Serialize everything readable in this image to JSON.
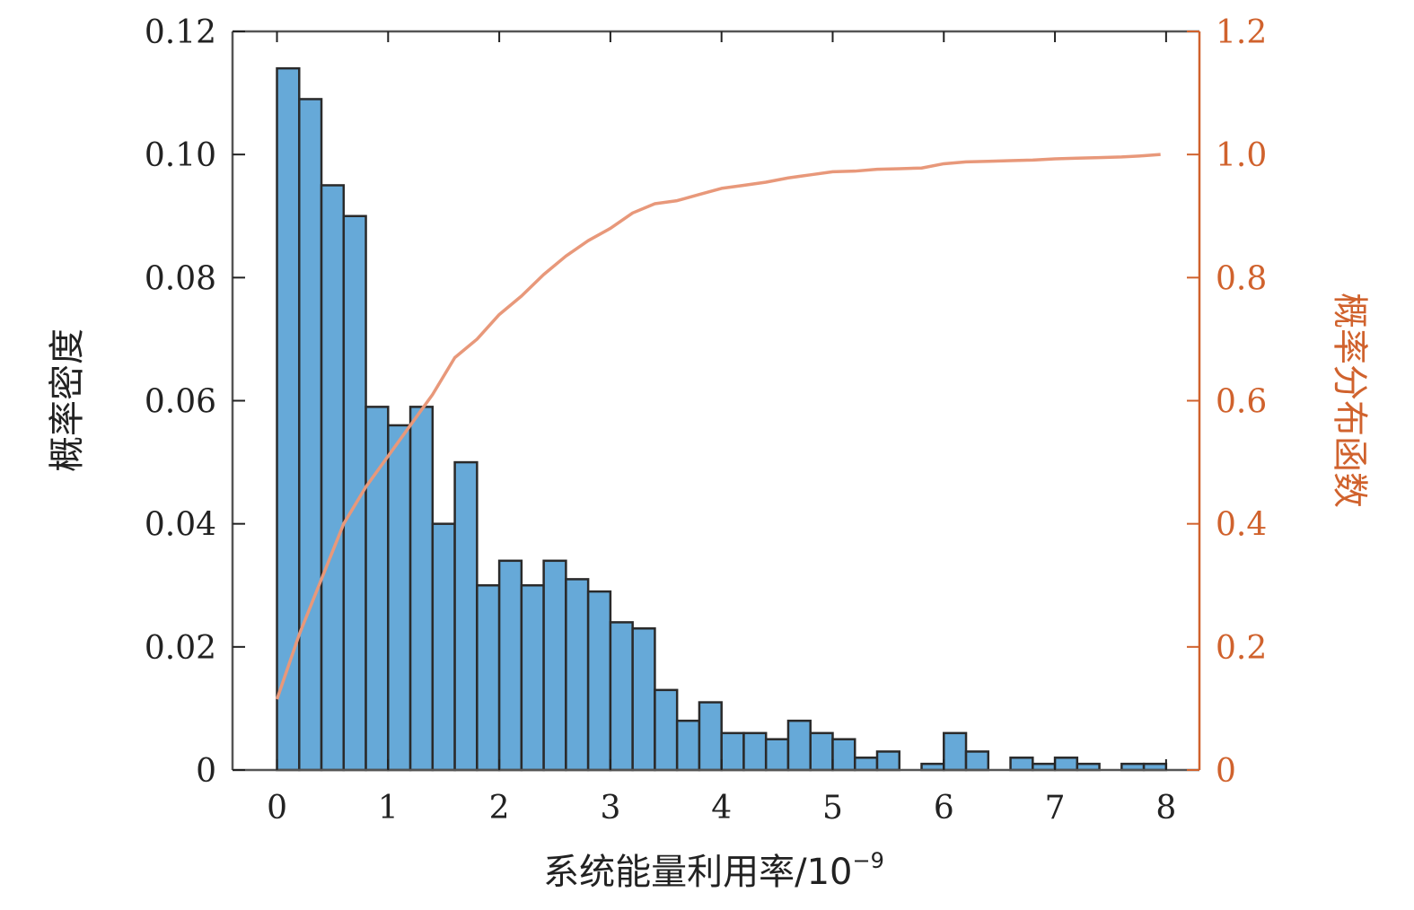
{
  "chart_data": {
    "type": "bar",
    "title": "",
    "xlabel": "系统能量利用率/10",
    "xlabel_exponent": "−9",
    "ylabel_left": "概率密度",
    "ylabel_right": "概率分布函数",
    "xlim": [
      -0.4,
      8.3
    ],
    "ylim_left": [
      0,
      0.12
    ],
    "ylim_right": [
      0,
      1.2
    ],
    "x_ticks": [
      "0",
      "1",
      "2",
      "3",
      "4",
      "5",
      "6",
      "7",
      "8"
    ],
    "y_left_ticks": [
      "0",
      "0.02",
      "0.04",
      "0.06",
      "0.08",
      "0.10",
      "0.12"
    ],
    "y_right_ticks": [
      "0",
      "0.2",
      "0.4",
      "0.6",
      "0.8",
      "1.0",
      "1.2"
    ],
    "bin_width": 0.2,
    "histogram": {
      "bin_starts": [
        0,
        0.2,
        0.4,
        0.6,
        0.8,
        1.0,
        1.2,
        1.4,
        1.6,
        1.8,
        2.0,
        2.2,
        2.4,
        2.6,
        2.8,
        3.0,
        3.2,
        3.4,
        3.6,
        3.8,
        4.0,
        4.2,
        4.4,
        4.6,
        4.8,
        5.0,
        5.2,
        5.4,
        5.6,
        5.8,
        6.0,
        6.2,
        6.4,
        6.6,
        6.8,
        7.0,
        7.2,
        7.4,
        7.6,
        7.8
      ],
      "density": [
        0.114,
        0.109,
        0.095,
        0.09,
        0.059,
        0.056,
        0.059,
        0.04,
        0.05,
        0.03,
        0.034,
        0.03,
        0.034,
        0.031,
        0.029,
        0.024,
        0.023,
        0.013,
        0.008,
        0.011,
        0.006,
        0.006,
        0.005,
        0.008,
        0.006,
        0.005,
        0.002,
        0.003,
        0.0,
        0.001,
        0.006,
        0.003,
        0.0,
        0.002,
        0.001,
        0.002,
        0.001,
        0.0,
        0.001,
        0.001
      ],
      "color": "#66a9d8",
      "edge_color": "#2a2a2a"
    },
    "cdf": {
      "x": [
        0.0,
        0.2,
        0.4,
        0.6,
        0.8,
        1.0,
        1.2,
        1.4,
        1.6,
        1.8,
        2.0,
        2.2,
        2.4,
        2.6,
        2.8,
        3.0,
        3.2,
        3.4,
        3.6,
        3.8,
        4.0,
        4.2,
        4.4,
        4.6,
        4.8,
        5.0,
        5.2,
        5.4,
        5.6,
        5.8,
        6.0,
        6.2,
        6.4,
        6.6,
        6.8,
        7.0,
        7.2,
        7.4,
        7.6,
        7.8,
        7.95
      ],
      "y": [
        0.115,
        0.22,
        0.31,
        0.4,
        0.46,
        0.51,
        0.56,
        0.61,
        0.67,
        0.7,
        0.74,
        0.77,
        0.805,
        0.835,
        0.86,
        0.88,
        0.905,
        0.92,
        0.925,
        0.935,
        0.945,
        0.95,
        0.955,
        0.962,
        0.967,
        0.972,
        0.973,
        0.976,
        0.977,
        0.978,
        0.985,
        0.988,
        0.989,
        0.99,
        0.991,
        0.993,
        0.994,
        0.995,
        0.996,
        0.998,
        1.0
      ],
      "color": "#e8987a"
    },
    "right_axis_color": "#d0622d",
    "grid": false
  }
}
